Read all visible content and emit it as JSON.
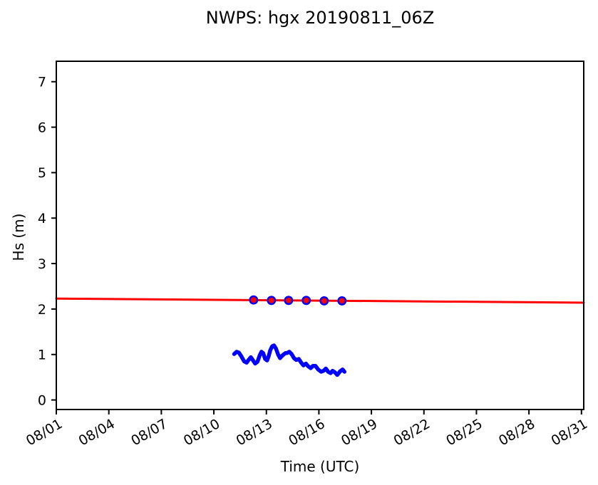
{
  "chart_data": {
    "type": "line",
    "title": "NWPS: hgx 20190811_06Z",
    "xlabel": "Time (UTC)",
    "ylabel": "Hs (m)",
    "x_unit": "day of August 2019",
    "xlim": [
      1,
      31.13
    ],
    "ylim": [
      -0.21,
      7.45
    ],
    "grid": false,
    "legend": false,
    "background": "#ffffff",
    "axis_color": "#000000",
    "yticks": [
      0,
      1,
      2,
      3,
      4,
      5,
      6,
      7
    ],
    "xticks": {
      "days": [
        1,
        4,
        7,
        10,
        13,
        16,
        19,
        22,
        25,
        28,
        31
      ],
      "labels": [
        "08/01",
        "08/04",
        "08/07",
        "08/10",
        "08/13",
        "08/16",
        "08/19",
        "08/22",
        "08/25",
        "08/28",
        "08/31"
      ]
    },
    "series": [
      {
        "name": "forecast-line",
        "type": "line",
        "color": "#ff0000",
        "linewidth": 3,
        "points": [
          [
            1,
            2.23
          ],
          [
            31.13,
            2.14
          ]
        ]
      },
      {
        "name": "forecast-daily-markers",
        "type": "scatter",
        "marker_fill": "#ff0000",
        "marker_edge": "#0000ff",
        "marker_radius": 5.2,
        "edge_width": 2.5,
        "points": [
          [
            12.27,
            2.2
          ],
          [
            13.29,
            2.19
          ],
          [
            14.27,
            2.19
          ],
          [
            15.28,
            2.19
          ],
          [
            16.3,
            2.18
          ],
          [
            17.32,
            2.18
          ]
        ]
      },
      {
        "name": "observations",
        "type": "line",
        "color": "#0000ff",
        "linewidth": 5.5,
        "points": [
          [
            11.16,
            1.01
          ],
          [
            11.3,
            1.06
          ],
          [
            11.43,
            1.04
          ],
          [
            11.57,
            0.96
          ],
          [
            11.73,
            0.85
          ],
          [
            11.87,
            0.82
          ],
          [
            12.0,
            0.89
          ],
          [
            12.11,
            0.94
          ],
          [
            12.22,
            0.88
          ],
          [
            12.36,
            0.8
          ],
          [
            12.49,
            0.84
          ],
          [
            12.63,
            0.99
          ],
          [
            12.72,
            1.06
          ],
          [
            12.82,
            1.03
          ],
          [
            12.93,
            0.9
          ],
          [
            13.04,
            0.87
          ],
          [
            13.13,
            0.96
          ],
          [
            13.22,
            1.09
          ],
          [
            13.33,
            1.18
          ],
          [
            13.44,
            1.2
          ],
          [
            13.55,
            1.13
          ],
          [
            13.67,
            1.0
          ],
          [
            13.78,
            0.92
          ],
          [
            13.87,
            0.96
          ],
          [
            13.98,
            1.0
          ],
          [
            14.09,
            1.03
          ],
          [
            14.17,
            1.03
          ],
          [
            14.31,
            1.06
          ],
          [
            14.44,
            1.01
          ],
          [
            14.58,
            0.92
          ],
          [
            14.71,
            0.88
          ],
          [
            14.85,
            0.9
          ],
          [
            14.99,
            0.82
          ],
          [
            15.12,
            0.76
          ],
          [
            15.26,
            0.8
          ],
          [
            15.39,
            0.74
          ],
          [
            15.53,
            0.7
          ],
          [
            15.66,
            0.75
          ],
          [
            15.8,
            0.75
          ],
          [
            15.96,
            0.67
          ],
          [
            16.13,
            0.62
          ],
          [
            16.26,
            0.64
          ],
          [
            16.4,
            0.69
          ],
          [
            16.53,
            0.62
          ],
          [
            16.67,
            0.59
          ],
          [
            16.78,
            0.64
          ],
          [
            16.91,
            0.61
          ],
          [
            17.05,
            0.55
          ],
          [
            17.21,
            0.63
          ],
          [
            17.35,
            0.67
          ],
          [
            17.46,
            0.62
          ]
        ]
      }
    ]
  }
}
